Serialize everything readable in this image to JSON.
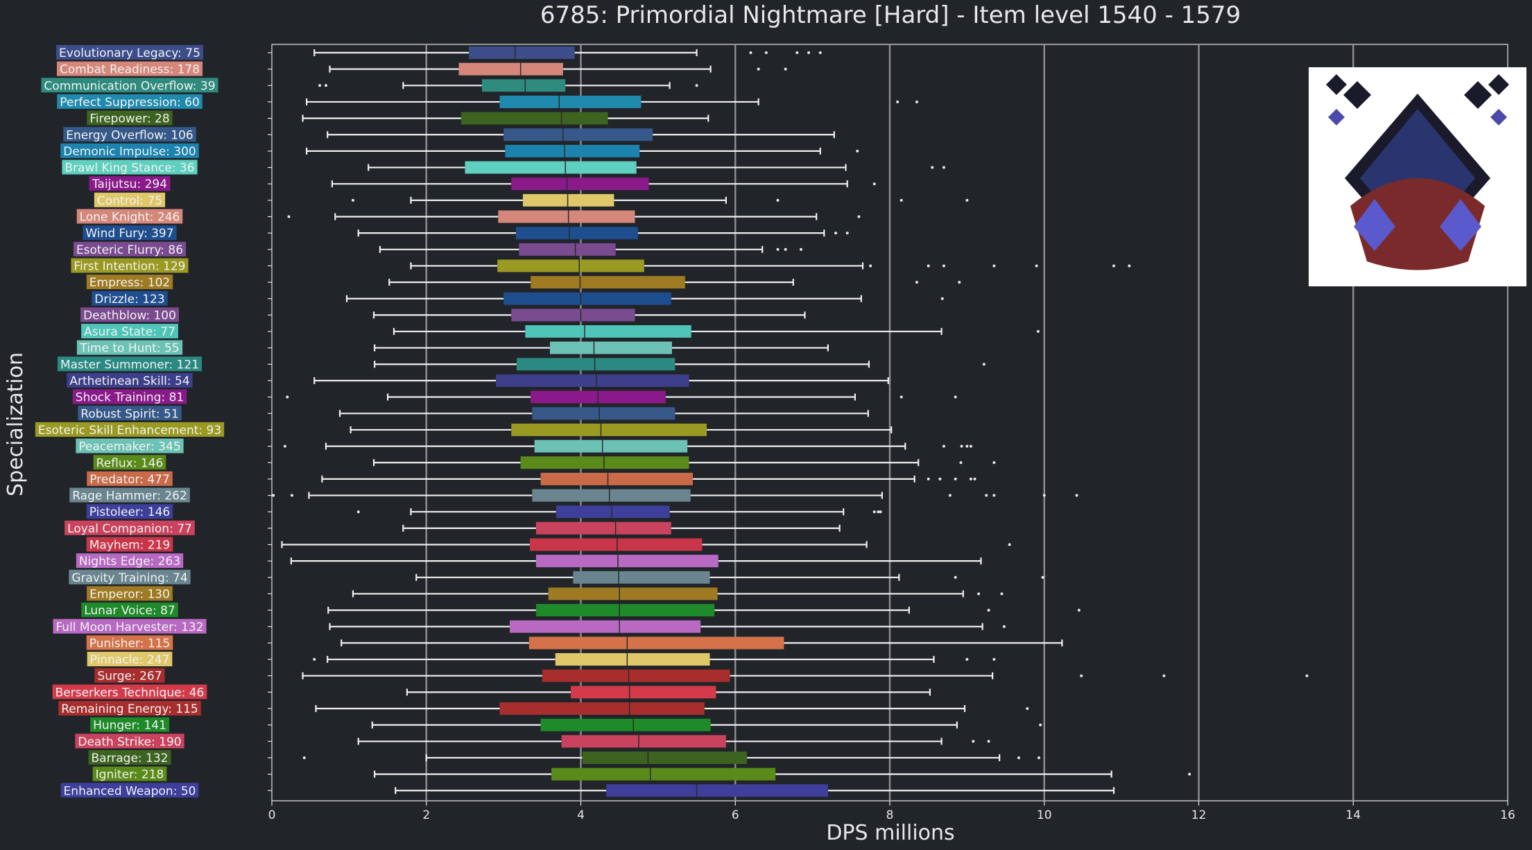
{
  "chart_data": {
    "type": "boxplot",
    "title": "6785: Primordial Nightmare [Hard] - Item level 1540 - 1579",
    "xlabel": "DPS millions",
    "ylabel": "Specialization",
    "xlim": [
      0,
      16
    ],
    "xticks": [
      0,
      2,
      4,
      6,
      8,
      10,
      12,
      14,
      16
    ],
    "grid": "vertical",
    "series": [
      {
        "label": "Evolutionary Legacy: 75",
        "color": "#3d4d8a",
        "whisker_low": 0.55,
        "q1": 2.55,
        "median": 3.15,
        "q3": 3.92,
        "whisker_high": 5.5,
        "outliers": [
          6.2,
          6.4,
          6.8,
          6.95,
          7.1
        ]
      },
      {
        "label": "Combat Readiness: 178",
        "color": "#d4877a",
        "whisker_low": 0.75,
        "q1": 2.42,
        "median": 3.22,
        "q3": 3.77,
        "whisker_high": 5.68,
        "outliers": [
          6.3,
          6.65
        ]
      },
      {
        "label": "Communication Overflow: 39",
        "color": "#2e8b7e",
        "whisker_low": 1.7,
        "q1": 2.72,
        "median": 3.28,
        "q3": 3.8,
        "whisker_high": 5.15,
        "outliers": [
          0.62,
          0.7,
          5.5
        ]
      },
      {
        "label": "Perfect Suppression: 60",
        "color": "#1f8aae",
        "whisker_low": 0.45,
        "q1": 2.95,
        "median": 3.72,
        "q3": 4.78,
        "whisker_high": 6.3,
        "outliers": [
          8.1,
          8.35
        ]
      },
      {
        "label": "Firepower: 28",
        "color": "#3d6320",
        "whisker_low": 0.4,
        "q1": 2.45,
        "median": 3.75,
        "q3": 4.35,
        "whisker_high": 5.65,
        "outliers": []
      },
      {
        "label": "Energy Overflow: 106",
        "color": "#36598a",
        "whisker_low": 0.72,
        "q1": 3.0,
        "median": 3.77,
        "q3": 4.93,
        "whisker_high": 7.28,
        "outliers": []
      },
      {
        "label": "Demonic Impulse: 300",
        "color": "#1b83ad",
        "whisker_low": 0.45,
        "q1": 3.02,
        "median": 3.79,
        "q3": 4.76,
        "whisker_high": 7.1,
        "outliers": [
          7.58
        ]
      },
      {
        "label": "Brawl King Stance: 36",
        "color": "#5fcfbf",
        "whisker_low": 1.25,
        "q1": 2.5,
        "median": 3.8,
        "q3": 4.72,
        "whisker_high": 7.43,
        "outliers": [
          8.55,
          8.7
        ]
      },
      {
        "label": "Taijutsu: 294",
        "color": "#8a1a8a",
        "whisker_low": 0.78,
        "q1": 3.1,
        "median": 3.82,
        "q3": 4.88,
        "whisker_high": 7.45,
        "outliers": [
          7.8
        ]
      },
      {
        "label": "Control: 75",
        "color": "#e0c86a",
        "whisker_low": 1.8,
        "q1": 3.25,
        "median": 3.83,
        "q3": 4.43,
        "whisker_high": 5.88,
        "outliers": [
          1.05,
          6.55,
          8.15,
          9.0
        ]
      },
      {
        "label": "Lone Knight: 246",
        "color": "#d4877a",
        "whisker_low": 0.82,
        "q1": 2.93,
        "median": 3.84,
        "q3": 4.7,
        "whisker_high": 7.05,
        "outliers": [
          0.22,
          7.6
        ]
      },
      {
        "label": "Wind Fury: 397",
        "color": "#1f4e8f",
        "whisker_low": 1.12,
        "q1": 3.16,
        "median": 3.85,
        "q3": 4.74,
        "whisker_high": 7.15,
        "outliers": [
          7.3,
          7.45
        ]
      },
      {
        "label": "Esoteric Flurry: 86",
        "color": "#7a4b8f",
        "whisker_low": 1.4,
        "q1": 3.2,
        "median": 3.93,
        "q3": 4.45,
        "whisker_high": 6.35,
        "outliers": [
          6.55,
          6.65,
          6.85
        ]
      },
      {
        "label": "First Intention: 129",
        "color": "#9a9a22",
        "whisker_low": 1.8,
        "q1": 2.92,
        "median": 3.98,
        "q3": 4.82,
        "whisker_high": 7.65,
        "outliers": [
          7.75,
          8.5,
          8.7,
          9.35,
          9.9,
          10.9,
          11.1
        ]
      },
      {
        "label": "Empress: 102",
        "color": "#9e7a22",
        "whisker_low": 1.52,
        "q1": 3.35,
        "median": 3.99,
        "q3": 5.35,
        "whisker_high": 6.75,
        "outliers": [
          8.35,
          8.9
        ]
      },
      {
        "label": "Drizzle: 123",
        "color": "#1f4e8f",
        "whisker_low": 0.97,
        "q1": 3.0,
        "median": 4.0,
        "q3": 5.17,
        "whisker_high": 7.63,
        "outliers": [
          8.68
        ]
      },
      {
        "label": "Deathblow: 100",
        "color": "#7a4b8f",
        "whisker_low": 1.32,
        "q1": 3.1,
        "median": 4.0,
        "q3": 4.7,
        "whisker_high": 6.9,
        "outliers": []
      },
      {
        "label": "Asura State: 77",
        "color": "#4fc4b8",
        "whisker_low": 1.58,
        "q1": 3.28,
        "median": 4.05,
        "q3": 5.43,
        "whisker_high": 8.67,
        "outliers": [
          9.92
        ]
      },
      {
        "label": "Time to Hunt: 55",
        "color": "#6cc2b4",
        "whisker_low": 1.33,
        "q1": 3.6,
        "median": 4.17,
        "q3": 5.18,
        "whisker_high": 7.2,
        "outliers": []
      },
      {
        "label": "Master Summoner: 121",
        "color": "#2a8a82",
        "whisker_low": 1.33,
        "q1": 3.17,
        "median": 4.18,
        "q3": 5.22,
        "whisker_high": 7.73,
        "outliers": [
          9.22
        ]
      },
      {
        "label": "Arthetinean Skill: 54",
        "color": "#3d3f8a",
        "whisker_low": 0.55,
        "q1": 2.9,
        "median": 4.2,
        "q3": 5.4,
        "whisker_high": 7.98,
        "outliers": []
      },
      {
        "label": "Shock Training: 81",
        "color": "#8a1a8a",
        "whisker_low": 1.5,
        "q1": 3.35,
        "median": 4.22,
        "q3": 5.1,
        "whisker_high": 7.55,
        "outliers": [
          0.2,
          8.15,
          8.85
        ]
      },
      {
        "label": "Robust Spirit: 51",
        "color": "#36598a",
        "whisker_low": 0.88,
        "q1": 3.37,
        "median": 4.24,
        "q3": 5.22,
        "whisker_high": 7.72,
        "outliers": []
      },
      {
        "label": "Esoteric Skill Enhancement: 93",
        "color": "#9a9a22",
        "whisker_low": 1.02,
        "q1": 3.1,
        "median": 4.26,
        "q3": 5.63,
        "whisker_high": 8.02,
        "outliers": []
      },
      {
        "label": "Peacemaker: 345",
        "color": "#6cc2b4",
        "whisker_low": 0.7,
        "q1": 3.4,
        "median": 4.28,
        "q3": 5.38,
        "whisker_high": 8.2,
        "outliers": [
          0.17,
          8.7,
          8.93,
          9.0,
          9.05
        ]
      },
      {
        "label": "Reflux: 146",
        "color": "#5a8a1a",
        "whisker_low": 1.32,
        "q1": 3.22,
        "median": 4.3,
        "q3": 5.4,
        "whisker_high": 8.37,
        "outliers": [
          8.92,
          9.35
        ]
      },
      {
        "label": "Predator: 477",
        "color": "#c96a48",
        "whisker_low": 0.65,
        "q1": 3.48,
        "median": 4.35,
        "q3": 5.45,
        "whisker_high": 8.32,
        "outliers": [
          8.5,
          8.65,
          8.85,
          9.05,
          9.1
        ]
      },
      {
        "label": "Rage Hammer: 262",
        "color": "#6a8590",
        "whisker_low": 0.48,
        "q1": 3.37,
        "median": 4.37,
        "q3": 5.42,
        "whisker_high": 7.9,
        "outliers": [
          0.02,
          0.26,
          8.78,
          9.25,
          9.35,
          10.0,
          10.42
        ]
      },
      {
        "label": "Pistoleer: 146",
        "color": "#3d3f9a",
        "whisker_low": 1.8,
        "q1": 3.68,
        "median": 4.4,
        "q3": 5.15,
        "whisker_high": 7.4,
        "outliers": [
          1.12,
          7.8,
          7.85,
          7.88
        ]
      },
      {
        "label": "Loyal Companion: 77",
        "color": "#c9435e",
        "whisker_low": 1.7,
        "q1": 3.42,
        "median": 4.45,
        "q3": 5.17,
        "whisker_high": 7.35,
        "outliers": []
      },
      {
        "label": "Mayhem: 219",
        "color": "#c9364a",
        "whisker_low": 0.13,
        "q1": 3.34,
        "median": 4.47,
        "q3": 5.57,
        "whisker_high": 7.7,
        "outliers": [
          9.55
        ]
      },
      {
        "label": "Nights Edge: 263",
        "color": "#b86ac2",
        "whisker_low": 0.25,
        "q1": 3.42,
        "median": 4.48,
        "q3": 5.78,
        "whisker_high": 9.18,
        "outliers": []
      },
      {
        "label": "Gravity Training: 74",
        "color": "#6a8590",
        "whisker_low": 1.87,
        "q1": 3.9,
        "median": 4.49,
        "q3": 5.67,
        "whisker_high": 8.12,
        "outliers": [
          8.85,
          9.98
        ]
      },
      {
        "label": "Emperor: 130",
        "color": "#9e7a22",
        "whisker_low": 1.05,
        "q1": 3.58,
        "median": 4.5,
        "q3": 5.77,
        "whisker_high": 8.95,
        "outliers": [
          9.15,
          9.45
        ]
      },
      {
        "label": "Lunar Voice: 87",
        "color": "#1f8a2a",
        "whisker_low": 0.73,
        "q1": 3.42,
        "median": 4.5,
        "q3": 5.73,
        "whisker_high": 8.25,
        "outliers": [
          9.28,
          10.45
        ]
      },
      {
        "label": "Full Moon Harvester: 132",
        "color": "#b86ac2",
        "whisker_low": 0.75,
        "q1": 3.08,
        "median": 4.5,
        "q3": 5.55,
        "whisker_high": 9.2,
        "outliers": [
          9.48
        ]
      },
      {
        "label": "Punisher: 115",
        "color": "#d4734a",
        "whisker_low": 0.9,
        "q1": 3.33,
        "median": 4.6,
        "q3": 6.63,
        "whisker_high": 10.23,
        "outliers": []
      },
      {
        "label": "Pinnacle: 247",
        "color": "#e0c86a",
        "whisker_low": 0.72,
        "q1": 3.67,
        "median": 4.6,
        "q3": 5.67,
        "whisker_high": 8.57,
        "outliers": [
          0.55,
          9.0,
          9.35
        ]
      },
      {
        "label": "Surge: 267",
        "color": "#a82e2e",
        "whisker_low": 0.4,
        "q1": 3.5,
        "median": 4.62,
        "q3": 5.93,
        "whisker_high": 9.33,
        "outliers": [
          10.48,
          11.55,
          13.4
        ]
      },
      {
        "label": "Berserkers Technique: 46",
        "color": "#d43a4a",
        "whisker_low": 1.75,
        "q1": 3.87,
        "median": 4.63,
        "q3": 5.75,
        "whisker_high": 8.52,
        "outliers": []
      },
      {
        "label": "Remaining Energy: 115",
        "color": "#a82e2e",
        "whisker_low": 0.57,
        "q1": 2.95,
        "median": 4.63,
        "q3": 5.6,
        "whisker_high": 8.97,
        "outliers": [
          9.78
        ]
      },
      {
        "label": "Hunger: 141",
        "color": "#1f8a2a",
        "whisker_low": 1.3,
        "q1": 3.48,
        "median": 4.68,
        "q3": 5.68,
        "whisker_high": 8.87,
        "outliers": [
          9.95
        ]
      },
      {
        "label": "Death Strike: 190",
        "color": "#c9435e",
        "whisker_low": 1.12,
        "q1": 3.75,
        "median": 4.75,
        "q3": 5.88,
        "whisker_high": 8.67,
        "outliers": [
          9.08,
          9.28
        ]
      },
      {
        "label": "Barrage: 132",
        "color": "#3d6320",
        "whisker_low": 2.0,
        "q1": 4.02,
        "median": 4.87,
        "q3": 6.15,
        "whisker_high": 9.42,
        "outliers": [
          0.42,
          9.67,
          9.93
        ]
      },
      {
        "label": "Igniter: 218",
        "color": "#5a8a1a",
        "whisker_low": 1.33,
        "q1": 3.62,
        "median": 4.9,
        "q3": 6.52,
        "whisker_high": 10.87,
        "outliers": [
          11.88
        ]
      },
      {
        "label": "Enhanced Weapon: 50",
        "color": "#3d3f9a",
        "whisker_low": 1.6,
        "q1": 4.33,
        "median": 5.5,
        "q3": 7.2,
        "whisker_high": 10.9,
        "outliers": []
      }
    ]
  },
  "emblem": {
    "icon": "raid-emblem-icon"
  }
}
